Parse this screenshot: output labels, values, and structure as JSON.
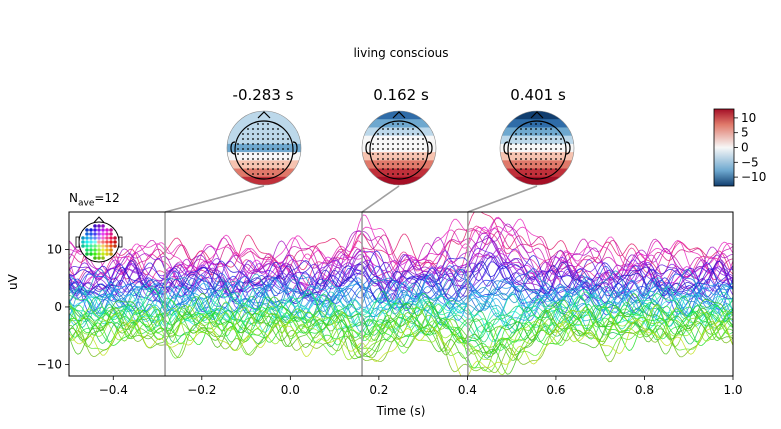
{
  "figure": {
    "title": "living conscious",
    "nave_label": "N",
    "nave_subscript": "ave",
    "nave_value": "=12"
  },
  "topomaps": [
    {
      "time_label": "-0.283 s",
      "time": -0.283,
      "pattern": "neg"
    },
    {
      "time_label": "0.162 s",
      "time": 0.162,
      "pattern": "mid"
    },
    {
      "time_label": "0.401 s",
      "time": 0.401,
      "pattern": "pos"
    }
  ],
  "colorbar": {
    "ticks": [
      10,
      5,
      0,
      -5,
      -10
    ],
    "tick_labels": [
      "10",
      "5",
      "0",
      "−5",
      "−10"
    ],
    "range": [
      -13,
      13
    ],
    "colormap": "RdBu_r",
    "colors": {
      "high": "#a50f26",
      "mid": "#f7f7f7",
      "low": "#113e6f"
    }
  },
  "chart_data": {
    "type": "line",
    "title": "living conscious",
    "xlabel": "Time (s)",
    "ylabel": "uV",
    "xlim": [
      -0.5,
      1.0
    ],
    "ylim": [
      -12,
      16.5
    ],
    "xticks": [
      -0.4,
      -0.2,
      0.0,
      0.2,
      0.4,
      0.6,
      0.8,
      1.0
    ],
    "xtick_labels": [
      "−0.4",
      "−0.2",
      "0.0",
      "0.2",
      "0.4",
      "0.6",
      "0.8",
      "1.0"
    ],
    "yticks": [
      10,
      0,
      -10
    ],
    "ytick_labels": [
      "10",
      "0",
      "−10"
    ],
    "markers": [
      -0.283,
      0.162,
      0.401
    ],
    "n_channels": 60,
    "channel_colormap": "spatial (sensor position)",
    "grid": false,
    "legend": "none"
  }
}
